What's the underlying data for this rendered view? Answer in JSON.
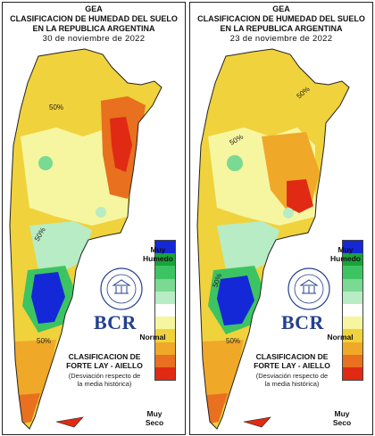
{
  "panels": [
    {
      "id": "nov30",
      "org": "GEA",
      "title_line1": "CLASIFICACION DE HUMEDAD DEL SUELO",
      "title_line2": "EN LA REPUBLICA ARGENTINA",
      "date": "30 de noviembre de 2022",
      "contour_labels": [
        "50%",
        "50%",
        "50%"
      ]
    },
    {
      "id": "nov23",
      "org": "GEA",
      "title_line1": "CLASIFICACION DE HUMEDAD DEL SUELO",
      "title_line2": "EN LA REPUBLICA ARGENTINA",
      "date": "23 de noviembre de 2022",
      "contour_labels": [
        "50%",
        "50%",
        "50%",
        "50%"
      ]
    }
  ],
  "legend": {
    "top_label_1": "Muy",
    "top_label_2": "Humedo",
    "mid_label": "Normal",
    "bottom_label_1": "Muy",
    "bottom_label_2": "Seco",
    "colors": [
      "#1428d8",
      "#1aa23a",
      "#3cc462",
      "#7ad992",
      "#b8ecc4",
      "#ffffff",
      "#f6f6a0",
      "#f0d23c",
      "#f0a828",
      "#e8701e",
      "#e02a14"
    ]
  },
  "brand": {
    "logo_text": "BCR",
    "seal_text": "BOLSA DE COMERCIO DE ROSARIO"
  },
  "classification": {
    "line1": "CLASIFICACION DE",
    "line2": "FORTE LAY - AIELLO",
    "note1": "(Desviación respecto de",
    "note2": "la media histórica)"
  }
}
